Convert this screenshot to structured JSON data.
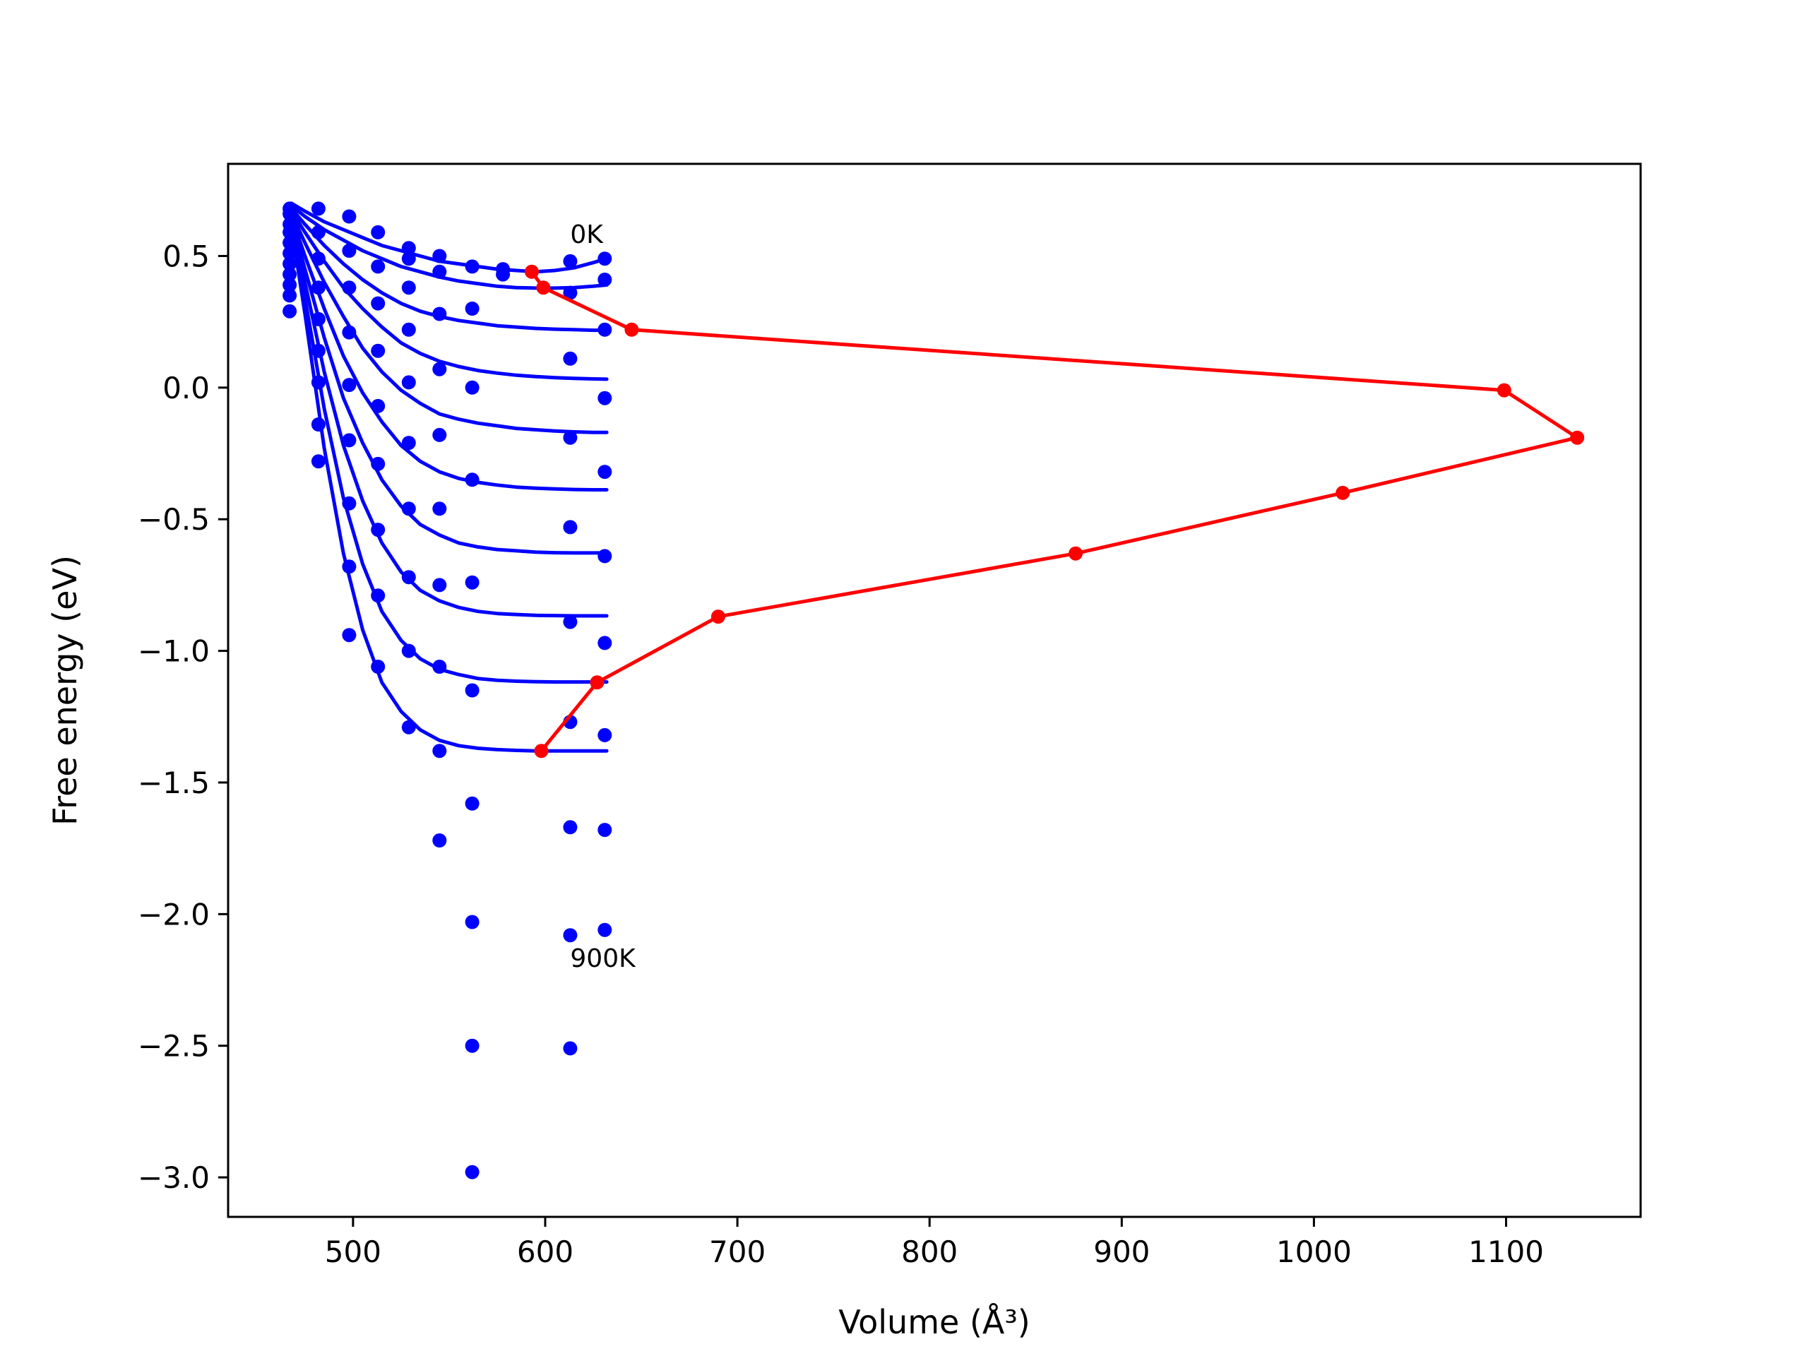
{
  "chart_data": {
    "type": "line",
    "title": "",
    "xlabel": "Volume (Å³)",
    "ylabel": "Free energy (eV)",
    "xlim": [
      435,
      1170
    ],
    "ylim": [
      -3.15,
      0.85
    ],
    "grid": false,
    "legend": "none",
    "x_ticks": [
      500,
      600,
      700,
      800,
      900,
      1000,
      1100
    ],
    "y_ticks": [
      0.5,
      0.0,
      -0.5,
      -1.0,
      -1.5,
      -2.0,
      -2.5,
      -3.0
    ],
    "x_tick_labels": [
      "500",
      "600",
      "700",
      "800",
      "900",
      "1000",
      "1100"
    ],
    "y_tick_labels": [
      "0.5",
      "0.0",
      "−0.5",
      "−1.0",
      "−1.5",
      "−2.0",
      "−2.5",
      "−3.0"
    ],
    "annotations": [
      {
        "text": "0K",
        "x": 613,
        "y": 0.55
      },
      {
        "text": "900K",
        "x": 613,
        "y": -2.2
      }
    ],
    "colors": {
      "fit": "#0000ff",
      "points": "#0000ff",
      "minima": "#ff0000",
      "frame": "#000000"
    },
    "fit_curves": {
      "x": [
        468,
        475,
        485,
        495,
        505,
        515,
        525,
        535,
        545,
        555,
        565,
        575,
        585,
        595,
        605,
        615,
        625,
        632
      ],
      "series": [
        {
          "values": [
            0.7,
            0.67,
            0.63,
            0.6,
            0.57,
            0.54,
            0.52,
            0.5,
            0.48,
            0.47,
            0.46,
            0.45,
            0.445,
            0.44,
            0.445,
            0.455,
            0.475,
            0.49
          ]
        },
        {
          "values": [
            0.69,
            0.65,
            0.6,
            0.56,
            0.52,
            0.49,
            0.46,
            0.44,
            0.42,
            0.405,
            0.395,
            0.385,
            0.38,
            0.378,
            0.378,
            0.38,
            0.385,
            0.39
          ]
        },
        {
          "values": [
            0.68,
            0.62,
            0.54,
            0.47,
            0.41,
            0.36,
            0.32,
            0.29,
            0.27,
            0.255,
            0.245,
            0.235,
            0.23,
            0.225,
            0.222,
            0.22,
            0.218,
            0.218
          ]
        },
        {
          "values": [
            0.67,
            0.59,
            0.48,
            0.38,
            0.3,
            0.23,
            0.17,
            0.13,
            0.1,
            0.08,
            0.065,
            0.055,
            0.047,
            0.042,
            0.038,
            0.035,
            0.033,
            0.032
          ]
        },
        {
          "values": [
            0.66,
            0.55,
            0.4,
            0.27,
            0.15,
            0.06,
            -0.01,
            -0.06,
            -0.1,
            -0.12,
            -0.135,
            -0.145,
            -0.155,
            -0.16,
            -0.165,
            -0.168,
            -0.17,
            -0.17
          ]
        },
        {
          "values": [
            0.65,
            0.5,
            0.3,
            0.12,
            -0.02,
            -0.13,
            -0.22,
            -0.28,
            -0.32,
            -0.345,
            -0.36,
            -0.37,
            -0.378,
            -0.382,
            -0.385,
            -0.387,
            -0.388,
            -0.388
          ]
        },
        {
          "values": [
            0.64,
            0.45,
            0.19,
            -0.04,
            -0.21,
            -0.35,
            -0.45,
            -0.52,
            -0.56,
            -0.59,
            -0.605,
            -0.615,
            -0.62,
            -0.625,
            -0.627,
            -0.628,
            -0.628,
            -0.628
          ]
        },
        {
          "values": [
            0.63,
            0.4,
            0.06,
            -0.22,
            -0.43,
            -0.59,
            -0.7,
            -0.77,
            -0.81,
            -0.835,
            -0.85,
            -0.858,
            -0.862,
            -0.865,
            -0.866,
            -0.867,
            -0.867,
            -0.867
          ]
        },
        {
          "values": [
            0.62,
            0.34,
            -0.08,
            -0.42,
            -0.67,
            -0.85,
            -0.96,
            -1.03,
            -1.07,
            -1.09,
            -1.105,
            -1.112,
            -1.115,
            -1.117,
            -1.118,
            -1.118,
            -1.118,
            -1.118
          ]
        },
        {
          "values": [
            0.61,
            0.28,
            -0.23,
            -0.63,
            -0.92,
            -1.12,
            -1.23,
            -1.3,
            -1.34,
            -1.36,
            -1.37,
            -1.375,
            -1.378,
            -1.38,
            -1.38,
            -1.38,
            -1.38,
            -1.38
          ]
        }
      ]
    },
    "data_points": [
      {
        "x": 467,
        "y": [
          0.68,
          0.66,
          0.62,
          0.59,
          0.55,
          0.51,
          0.47,
          0.43,
          0.39,
          0.35,
          0.29
        ]
      },
      {
        "x": 482,
        "y": [
          0.68,
          0.59,
          0.49,
          0.38,
          0.26,
          0.14,
          0.02,
          -0.14,
          -0.28
        ]
      },
      {
        "x": 498,
        "y": [
          0.65,
          0.52,
          0.38,
          0.21,
          0.01,
          -0.2,
          -0.44,
          -0.68,
          -0.94
        ]
      },
      {
        "x": 513,
        "y": [
          0.59,
          0.46,
          0.32,
          0.14,
          -0.07,
          -0.29,
          -0.54,
          -0.79,
          -1.06
        ]
      },
      {
        "x": 529,
        "y": [
          0.53,
          0.49,
          0.38,
          0.22,
          0.02,
          -0.21,
          -0.46,
          -0.72,
          -1.0,
          -1.29
        ]
      },
      {
        "x": 545,
        "y": [
          0.5,
          0.44,
          0.28,
          0.07,
          -0.18,
          -0.46,
          -0.75,
          -1.06,
          -1.38,
          -1.72
        ]
      },
      {
        "x": 562,
        "y": [
          0.46,
          0.3,
          0.0,
          -0.35,
          -0.74,
          -1.15,
          -1.58,
          -2.03,
          -2.5,
          -2.98
        ]
      },
      {
        "x": 578,
        "y": [
          0.45,
          0.43
        ]
      },
      {
        "x": 613,
        "y": [
          0.48,
          0.36,
          0.11,
          -0.19,
          -0.53,
          -0.89,
          -1.27,
          -1.67,
          -2.08,
          -2.51
        ]
      },
      {
        "x": 631,
        "y": [
          0.49,
          0.41,
          0.22,
          -0.04,
          -0.32,
          -0.64,
          -0.97,
          -1.32,
          -1.68,
          -2.06
        ]
      }
    ],
    "minima_path": {
      "x": [
        593,
        599,
        645,
        1099,
        1137,
        1015,
        876,
        690,
        627,
        598
      ],
      "y": [
        0.44,
        0.38,
        0.22,
        -0.01,
        -0.19,
        -0.4,
        -0.63,
        -0.87,
        -1.12,
        -1.38
      ]
    }
  }
}
